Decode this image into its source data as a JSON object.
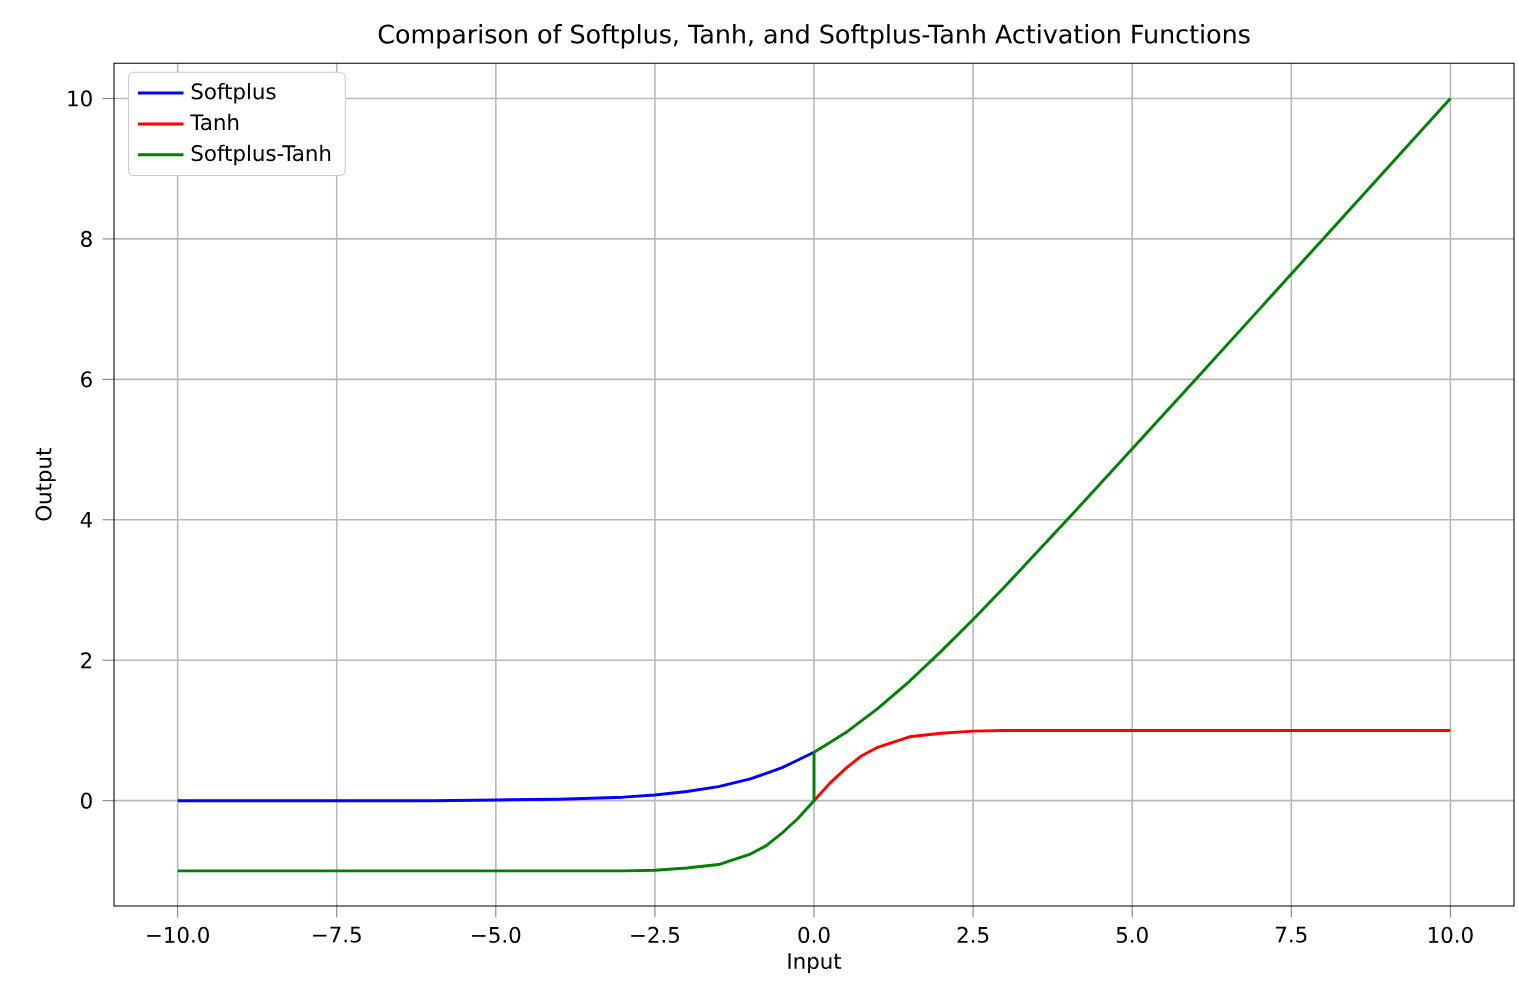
{
  "chart_data": {
    "type": "line",
    "title": "Comparison of Softplus, Tanh, and Softplus-Tanh Activation Functions",
    "xlabel": "Input",
    "ylabel": "Output",
    "x": [
      -10,
      -8,
      -6,
      -5,
      -4,
      -3,
      -2.5,
      -2,
      -1.5,
      -1,
      -0.75,
      -0.5,
      -0.25,
      0,
      0.25,
      0.5,
      0.75,
      1,
      1.5,
      2,
      2.5,
      3,
      4,
      5,
      6,
      7,
      8,
      9,
      10
    ],
    "series": [
      {
        "name": "Softplus",
        "color": "#0000ff",
        "values": [
          0.0,
          0.0,
          0.0,
          0.01,
          0.02,
          0.05,
          0.08,
          0.13,
          0.2,
          0.31,
          0.39,
          0.47,
          0.58,
          0.69,
          null,
          null,
          null,
          null,
          null,
          null,
          null,
          null,
          null,
          null,
          null,
          null,
          null,
          null,
          null
        ]
      },
      {
        "name": "Tanh",
        "color": "#ff0000",
        "values": [
          null,
          null,
          null,
          null,
          null,
          null,
          null,
          null,
          null,
          null,
          null,
          null,
          null,
          0.0,
          0.25,
          0.46,
          0.64,
          0.76,
          0.91,
          0.96,
          0.99,
          1.0,
          1.0,
          1.0,
          1.0,
          1.0,
          1.0,
          1.0,
          1.0
        ]
      },
      {
        "name": "Softplus-Tanh",
        "color": "#008000",
        "x": [
          -10,
          -8,
          -6,
          -5,
          -4,
          -3,
          -2.5,
          -2,
          -1.5,
          -1,
          -0.75,
          -0.5,
          -0.25,
          0,
          0,
          0.25,
          0.5,
          0.75,
          1,
          1.5,
          2,
          2.5,
          3,
          4,
          5,
          6,
          7,
          8,
          9,
          10
        ],
        "values": [
          -1.0,
          -1.0,
          -1.0,
          -1.0,
          -1.0,
          -1.0,
          -0.99,
          -0.96,
          -0.91,
          -0.76,
          -0.64,
          -0.46,
          -0.25,
          0.0,
          0.69,
          0.83,
          0.97,
          1.14,
          1.31,
          1.7,
          2.13,
          2.58,
          3.05,
          4.02,
          5.01,
          6.0,
          7.0,
          8.0,
          9.0,
          10.0
        ]
      }
    ],
    "xlim": [
      -11,
      11
    ],
    "ylim": [
      -1.5,
      10.5
    ],
    "xticks": [
      {
        "value": -10,
        "label": "−10.0"
      },
      {
        "value": -7.5,
        "label": "−7.5"
      },
      {
        "value": -5,
        "label": "−5.0"
      },
      {
        "value": -2.5,
        "label": "−2.5"
      },
      {
        "value": 0,
        "label": "0.0"
      },
      {
        "value": 2.5,
        "label": "2.5"
      },
      {
        "value": 5,
        "label": "5.0"
      },
      {
        "value": 7.5,
        "label": "7.5"
      },
      {
        "value": 10,
        "label": "10.0"
      }
    ],
    "yticks": [
      0,
      2,
      4,
      6,
      8,
      10
    ],
    "grid": true,
    "legend": "top left"
  }
}
